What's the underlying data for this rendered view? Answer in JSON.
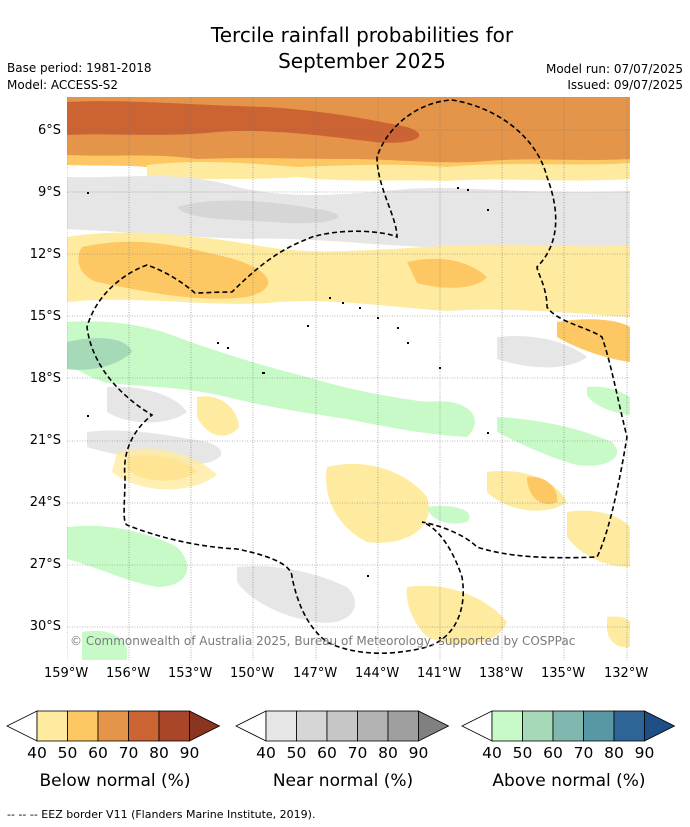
{
  "title_line1": "Tercile rainfall probabilities for",
  "title_line2": "September 2025",
  "base_period": "Base period: 1981-2018",
  "model": "Model: ACCESS-S2",
  "model_run": "Model run: 07/07/2025",
  "issued": "Issued: 09/07/2025",
  "copyright": "© Commonwealth of Australia 2025, Bureau of Meteorology, supported by COSPPac",
  "lat_labels": [
    "6°S",
    "9°S",
    "12°S",
    "15°S",
    "18°S",
    "21°S",
    "24°S",
    "27°S",
    "30°S"
  ],
  "lon_labels": [
    "159°W",
    "156°W",
    "153°W",
    "150°W",
    "147°W",
    "144°W",
    "141°W",
    "138°W",
    "135°W",
    "132°W"
  ],
  "colorbars": [
    {
      "label": "Below normal (%)",
      "ticks": [
        "40",
        "50",
        "60",
        "70",
        "80",
        "90"
      ],
      "colors": [
        "#ffffff",
        "#ffeba0",
        "#fdc863",
        "#e49549",
        "#cb6333",
        "#a94528",
        "#8a3520"
      ]
    },
    {
      "label": "Near normal (%)",
      "ticks": [
        "40",
        "50",
        "60",
        "70",
        "80",
        "90"
      ],
      "colors": [
        "#ffffff",
        "#e6e6e6",
        "#d6d6d6",
        "#c6c6c6",
        "#b3b3b3",
        "#9f9f9f",
        "#808080"
      ]
    },
    {
      "label": "Above normal (%)",
      "ticks": [
        "40",
        "50",
        "60",
        "70",
        "80",
        "90"
      ],
      "colors": [
        "#ffffff",
        "#c8fac8",
        "#a5d9b8",
        "#80b8b0",
        "#5897a4",
        "#2f6496",
        "#1d4e85"
      ]
    }
  ],
  "footnote": "--  --  -- EEZ border V11 (Flanders Marine Institute, 2019)."
}
